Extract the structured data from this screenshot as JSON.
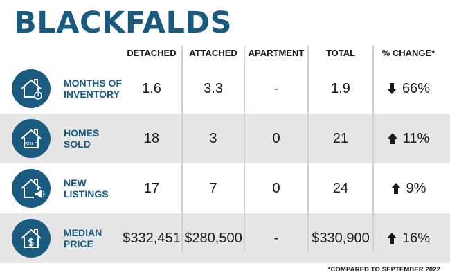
{
  "title": "BLACKFALDS",
  "columns": [
    "DETACHED",
    "ATTACHED",
    "APARTMENT",
    "TOTAL",
    "% CHANGE*"
  ],
  "rows": [
    {
      "label_line1": "MONTHS OF",
      "label_line2": "INVENTORY",
      "icon": "house-clock-icon",
      "detached": "1.6",
      "attached": "3.3",
      "apartment": "-",
      "total": "1.9",
      "direction": "down",
      "change": "66%"
    },
    {
      "label_line1": "HOMES",
      "label_line2": "SOLD",
      "icon": "house-sold-icon",
      "icon_text": "SOLD",
      "detached": "18",
      "attached": "3",
      "apartment": "0",
      "total": "21",
      "direction": "up",
      "change": "11%"
    },
    {
      "label_line1": "NEW",
      "label_line2": "LISTINGS",
      "icon": "house-megaphone-icon",
      "detached": "17",
      "attached": "7",
      "apartment": "0",
      "total": "24",
      "direction": "up",
      "change": "9%"
    },
    {
      "label_line1": "MEDIAN",
      "label_line2": "PRICE",
      "icon": "house-dollar-icon",
      "detached": "$332,451",
      "attached": "$280,500",
      "apartment": "-",
      "total": "$330,900",
      "direction": "up",
      "change": "16%"
    }
  ],
  "footnote": "*COMPARED TO SEPTEMBER 2022",
  "colors": {
    "brand": "#1b5a7f",
    "row_shade": "#e6e6e6",
    "text": "#1a1a1a"
  }
}
